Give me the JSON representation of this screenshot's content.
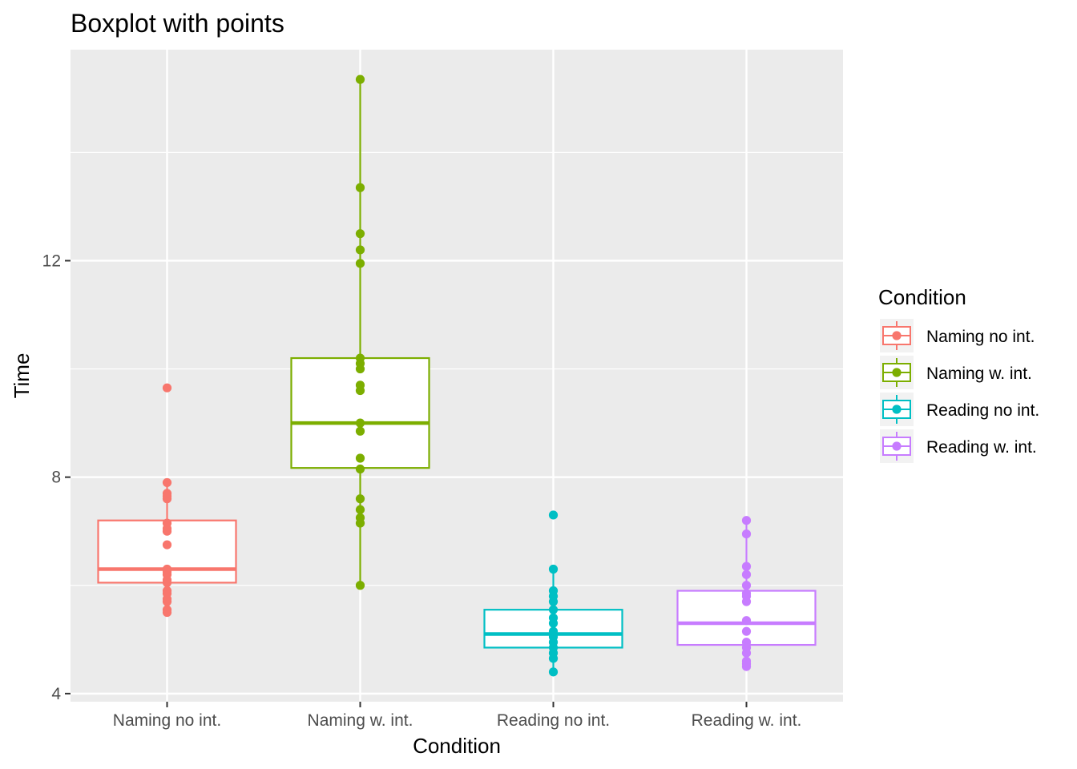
{
  "chart_data": {
    "type": "boxplot",
    "title": "Boxplot with points",
    "xlabel": "Condition",
    "ylabel": "Time",
    "categories": [
      "Naming no int.",
      "Naming w. int.",
      "Reading no int.",
      "Reading w. int."
    ],
    "colors": [
      "#F8766D",
      "#7CAE00",
      "#00BFC4",
      "#C77CFF"
    ],
    "ylim": [
      3.85,
      15.9
    ],
    "yticks": [
      4,
      8,
      12
    ],
    "ytick_labels": [
      "4",
      "8",
      "12"
    ],
    "grid": true,
    "legend": {
      "title": "Condition",
      "position": "right",
      "entries": [
        "Naming no int.",
        "Naming w. int.",
        "Reading no int.",
        "Reading w. int."
      ]
    },
    "boxes": [
      {
        "name": "Naming no int.",
        "q1": 6.05,
        "median": 6.3,
        "q3": 7.2,
        "whisker_low": 5.5,
        "whisker_high": 7.9
      },
      {
        "name": "Naming w. int.",
        "q1": 8.17,
        "median": 9.0,
        "q3": 10.2,
        "whisker_low": 6.0,
        "whisker_high": 15.35
      },
      {
        "name": "Reading no int.",
        "q1": 4.85,
        "median": 5.1,
        "q3": 5.55,
        "whisker_low": 4.4,
        "whisker_high": 6.3
      },
      {
        "name": "Reading w. int.",
        "q1": 4.9,
        "median": 5.3,
        "q3": 5.9,
        "whisker_low": 4.5,
        "whisker_high": 7.2
      }
    ],
    "points": [
      [
        5.5,
        5.55,
        5.7,
        5.75,
        5.85,
        5.9,
        6.05,
        6.1,
        6.2,
        6.25,
        6.3,
        6.75,
        7.0,
        7.05,
        7.15,
        7.6,
        7.65,
        7.7,
        7.9,
        9.65
      ],
      [
        6.0,
        7.15,
        7.25,
        7.4,
        7.6,
        8.15,
        8.35,
        8.85,
        9.0,
        9.6,
        9.7,
        10.0,
        10.1,
        10.2,
        11.95,
        12.2,
        12.5,
        13.35,
        15.35
      ],
      [
        4.4,
        4.65,
        4.75,
        4.85,
        4.95,
        5.05,
        5.15,
        5.3,
        5.4,
        5.55,
        5.7,
        5.8,
        5.9,
        6.3,
        7.3
      ],
      [
        4.5,
        4.55,
        4.6,
        4.75,
        4.85,
        4.95,
        5.15,
        5.35,
        5.7,
        5.8,
        5.85,
        6.0,
        6.2,
        6.35,
        6.95,
        7.2
      ]
    ]
  }
}
